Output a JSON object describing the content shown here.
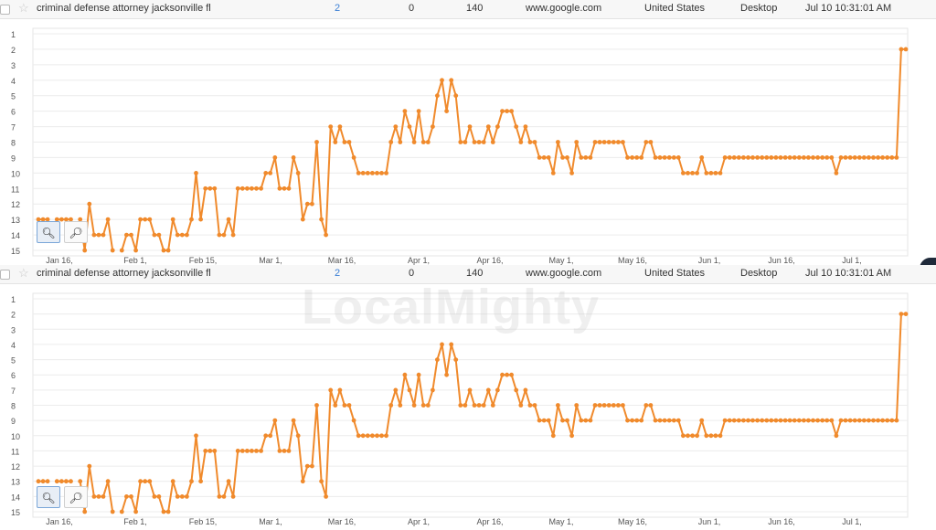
{
  "rows": [
    {
      "keyword": "criminal defense attorney jacksonville fl",
      "rank": "2",
      "change": "0",
      "volume": "140",
      "engine": "www.google.com",
      "country": "United States",
      "device": "Desktop",
      "updated": "Jul 10 10:31:01 AM"
    },
    {
      "keyword": "criminal defense attorney jacksonville fl",
      "rank": "2",
      "change": "0",
      "volume": "140",
      "engine": "www.google.com",
      "country": "United States",
      "device": "Desktop",
      "updated": "Jul 10 10:31:01 AM"
    }
  ],
  "icons": {
    "zoom_in": "zoom-in-icon",
    "zoom_reset": "zoom-reset-icon",
    "star": "star-icon",
    "checkbox": "checkbox-icon"
  },
  "watermark": "LocalMighty",
  "colors": {
    "line": "#f08a2c",
    "rank_link": "#3a7fd5",
    "grid": "#ececec"
  },
  "chart_data": [
    {
      "type": "line",
      "title": "",
      "xlabel": "",
      "ylabel": "",
      "x_ticks": [
        "Jan 16,",
        "Feb 1,",
        "Feb 15,",
        "Mar 1,",
        "Mar 16,",
        "Apr 1,",
        "Apr 16,",
        "May 1,",
        "May 16,",
        "Jun 1,",
        "Jun 16,",
        "Jul 1,"
      ],
      "y_ticks": [
        "1",
        "2",
        "3",
        "4",
        "5",
        "6",
        "7",
        "8",
        "9",
        "10",
        "11",
        "12",
        "13",
        "14",
        "15"
      ],
      "ylim": [
        1,
        15
      ],
      "y_inverted": true,
      "series": [
        {
          "values": [
            13,
            13,
            13,
            null,
            13,
            13,
            13,
            13,
            null,
            13,
            15,
            12,
            14,
            14,
            14,
            13,
            15,
            null,
            15,
            14,
            14,
            15,
            13,
            13,
            13,
            14,
            14,
            15,
            15,
            13,
            14,
            14,
            14,
            13,
            10,
            13,
            11,
            11,
            11,
            14,
            14,
            13,
            14,
            11,
            11,
            11,
            11,
            11,
            11,
            10,
            10,
            9,
            11,
            11,
            11,
            9,
            10,
            13,
            12,
            12,
            8,
            13,
            14,
            7,
            8,
            7,
            8,
            8,
            9,
            10,
            10,
            10,
            10,
            10,
            10,
            10,
            8,
            7,
            8,
            6,
            7,
            8,
            6,
            8,
            8,
            7,
            5,
            4,
            6,
            4,
            5,
            8,
            8,
            7,
            8,
            8,
            8,
            7,
            8,
            7,
            6,
            6,
            6,
            7,
            8,
            7,
            8,
            8,
            9,
            9,
            9,
            10,
            8,
            9,
            9,
            10,
            8,
            9,
            9,
            9,
            8,
            8,
            8,
            8,
            8,
            8,
            8,
            9,
            9,
            9,
            9,
            8,
            8,
            9,
            9,
            9,
            9,
            9,
            9,
            10,
            10,
            10,
            10,
            9,
            10,
            10,
            10,
            10,
            9,
            9,
            9,
            9,
            9,
            9,
            9,
            9,
            9,
            9,
            9,
            9,
            9,
            9,
            9,
            9,
            9,
            9,
            9,
            9,
            9,
            9,
            9,
            9,
            10,
            9,
            9,
            9,
            9,
            9,
            9,
            9,
            9,
            9,
            9,
            9,
            9,
            9,
            2,
            2
          ]
        }
      ]
    },
    {
      "type": "line",
      "title": "",
      "xlabel": "",
      "ylabel": "",
      "x_ticks": [
        "Jan 16,",
        "Feb 1,",
        "Feb 15,",
        "Mar 1,",
        "Mar 16,",
        "Apr 1,",
        "Apr 16,",
        "May 1,",
        "May 16,",
        "Jun 1,",
        "Jun 16,",
        "Jul 1,"
      ],
      "y_ticks": [
        "1",
        "2",
        "3",
        "4",
        "5",
        "6",
        "7",
        "8",
        "9",
        "10",
        "11",
        "12",
        "13",
        "14",
        "15"
      ],
      "ylim": [
        1,
        15
      ],
      "y_inverted": true,
      "series": [
        {
          "values": [
            13,
            13,
            13,
            null,
            13,
            13,
            13,
            13,
            null,
            13,
            15,
            12,
            14,
            14,
            14,
            13,
            15,
            null,
            15,
            14,
            14,
            15,
            13,
            13,
            13,
            14,
            14,
            15,
            15,
            13,
            14,
            14,
            14,
            13,
            10,
            13,
            11,
            11,
            11,
            14,
            14,
            13,
            14,
            11,
            11,
            11,
            11,
            11,
            11,
            10,
            10,
            9,
            11,
            11,
            11,
            9,
            10,
            13,
            12,
            12,
            8,
            13,
            14,
            7,
            8,
            7,
            8,
            8,
            9,
            10,
            10,
            10,
            10,
            10,
            10,
            10,
            8,
            7,
            8,
            6,
            7,
            8,
            6,
            8,
            8,
            7,
            5,
            4,
            6,
            4,
            5,
            8,
            8,
            7,
            8,
            8,
            8,
            7,
            8,
            7,
            6,
            6,
            6,
            7,
            8,
            7,
            8,
            8,
            9,
            9,
            9,
            10,
            8,
            9,
            9,
            10,
            8,
            9,
            9,
            9,
            8,
            8,
            8,
            8,
            8,
            8,
            8,
            9,
            9,
            9,
            9,
            8,
            8,
            9,
            9,
            9,
            9,
            9,
            9,
            10,
            10,
            10,
            10,
            9,
            10,
            10,
            10,
            10,
            9,
            9,
            9,
            9,
            9,
            9,
            9,
            9,
            9,
            9,
            9,
            9,
            9,
            9,
            9,
            9,
            9,
            9,
            9,
            9,
            9,
            9,
            9,
            9,
            10,
            9,
            9,
            9,
            9,
            9,
            9,
            9,
            9,
            9,
            9,
            9,
            9,
            9,
            2,
            2
          ]
        }
      ]
    }
  ]
}
